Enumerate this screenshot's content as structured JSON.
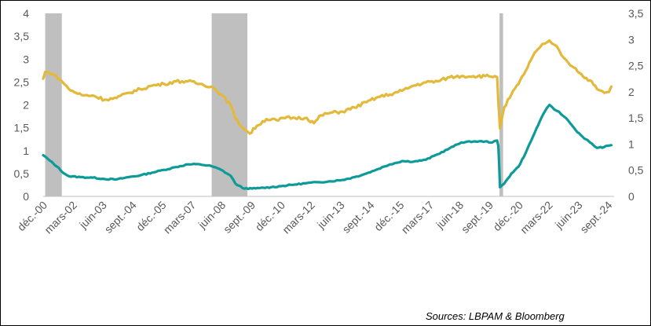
{
  "chart_data": {
    "type": "line",
    "title": "",
    "source": "Sources: LBPAM & Bloomberg",
    "ylim": [
      0,
      4
    ],
    "y2lim": [
      0,
      3.5
    ],
    "y_ticks": [
      "0",
      "0,5",
      "1",
      "1,5",
      "2",
      "2,5",
      "3",
      "3,5",
      "4"
    ],
    "y2_ticks": [
      "0",
      "0,5",
      "1",
      "1,5",
      "2",
      "2,5",
      "3",
      "3,5"
    ],
    "x_range": [
      2000.917,
      2024.917
    ],
    "x_ticks": [
      {
        "label": "déc.-00",
        "t": 2000.917
      },
      {
        "label": "mars-02",
        "t": 2002.167
      },
      {
        "label": "juin-03",
        "t": 2003.417
      },
      {
        "label": "sept.-04",
        "t": 2004.667
      },
      {
        "label": "déc.-05",
        "t": 2005.917
      },
      {
        "label": "mars-07",
        "t": 2007.167
      },
      {
        "label": "juin-08",
        "t": 2008.417
      },
      {
        "label": "sept.-09",
        "t": 2009.667
      },
      {
        "label": "déc.-10",
        "t": 2010.917
      },
      {
        "label": "mars-12",
        "t": 2012.167
      },
      {
        "label": "juin-13",
        "t": 2013.417
      },
      {
        "label": "sept.-14",
        "t": 2014.667
      },
      {
        "label": "déc.-15",
        "t": 2015.917
      },
      {
        "label": "mars-17",
        "t": 2017.167
      },
      {
        "label": "juin-18",
        "t": 2018.417
      },
      {
        "label": "sept.-19",
        "t": 2019.667
      },
      {
        "label": "déc.-20",
        "t": 2020.917
      },
      {
        "label": "mars-22",
        "t": 2022.167
      },
      {
        "label": "juin-23",
        "t": 2023.417
      },
      {
        "label": "sept.-24",
        "t": 2024.667
      }
    ],
    "recessions": [
      {
        "start": 2001.0,
        "end": 2001.7
      },
      {
        "start": 2008.0,
        "end": 2009.5
      },
      {
        "start": 2020.1,
        "end": 2020.25
      }
    ],
    "series": [
      {
        "name": "Teal series (left axis)",
        "axis": "left",
        "color": "#0f9a9a",
        "points": [
          [
            2000.917,
            0.9
          ],
          [
            2001.2,
            0.78
          ],
          [
            2001.5,
            0.65
          ],
          [
            2001.8,
            0.5
          ],
          [
            2002.0,
            0.44
          ],
          [
            2002.5,
            0.42
          ],
          [
            2003.0,
            0.41
          ],
          [
            2003.5,
            0.38
          ],
          [
            2004.0,
            0.37
          ],
          [
            2004.5,
            0.42
          ],
          [
            2005.0,
            0.46
          ],
          [
            2005.5,
            0.52
          ],
          [
            2006.0,
            0.58
          ],
          [
            2006.5,
            0.64
          ],
          [
            2007.0,
            0.7
          ],
          [
            2007.5,
            0.7
          ],
          [
            2008.0,
            0.66
          ],
          [
            2008.4,
            0.58
          ],
          [
            2008.8,
            0.45
          ],
          [
            2009.0,
            0.28
          ],
          [
            2009.3,
            0.18
          ],
          [
            2009.7,
            0.17
          ],
          [
            2010.0,
            0.18
          ],
          [
            2010.5,
            0.2
          ],
          [
            2011.0,
            0.23
          ],
          [
            2011.5,
            0.26
          ],
          [
            2012.0,
            0.29
          ],
          [
            2012.5,
            0.31
          ],
          [
            2013.0,
            0.33
          ],
          [
            2013.5,
            0.36
          ],
          [
            2014.0,
            0.42
          ],
          [
            2014.5,
            0.5
          ],
          [
            2015.0,
            0.6
          ],
          [
            2015.5,
            0.7
          ],
          [
            2016.0,
            0.77
          ],
          [
            2016.5,
            0.76
          ],
          [
            2017.0,
            0.8
          ],
          [
            2017.5,
            0.92
          ],
          [
            2018.0,
            1.05
          ],
          [
            2018.5,
            1.18
          ],
          [
            2019.0,
            1.2
          ],
          [
            2019.5,
            1.2
          ],
          [
            2019.8,
            1.18
          ],
          [
            2020.0,
            1.22
          ],
          [
            2020.05,
            1.1
          ],
          [
            2020.08,
            0.75
          ],
          [
            2020.12,
            0.2
          ],
          [
            2020.3,
            0.28
          ],
          [
            2020.6,
            0.5
          ],
          [
            2020.9,
            0.65
          ],
          [
            2021.2,
            0.95
          ],
          [
            2021.5,
            1.3
          ],
          [
            2021.8,
            1.65
          ],
          [
            2022.0,
            1.85
          ],
          [
            2022.2,
            2.0
          ],
          [
            2022.4,
            1.9
          ],
          [
            2022.6,
            1.85
          ],
          [
            2022.8,
            1.75
          ],
          [
            2023.0,
            1.65
          ],
          [
            2023.3,
            1.45
          ],
          [
            2023.6,
            1.3
          ],
          [
            2023.9,
            1.18
          ],
          [
            2024.2,
            1.06
          ],
          [
            2024.5,
            1.08
          ],
          [
            2024.8,
            1.12
          ]
        ]
      },
      {
        "name": "Gold series (right axis)",
        "axis": "right",
        "color": "#e3b93b",
        "points": [
          [
            2000.917,
            2.25
          ],
          [
            2001.0,
            2.38
          ],
          [
            2001.3,
            2.35
          ],
          [
            2001.6,
            2.25
          ],
          [
            2001.8,
            2.15
          ],
          [
            2002.0,
            2.05
          ],
          [
            2002.3,
            1.98
          ],
          [
            2002.6,
            1.93
          ],
          [
            2003.0,
            1.93
          ],
          [
            2003.5,
            1.85
          ],
          [
            2004.0,
            1.88
          ],
          [
            2004.5,
            1.98
          ],
          [
            2005.0,
            2.05
          ],
          [
            2005.5,
            2.12
          ],
          [
            2006.0,
            2.15
          ],
          [
            2006.5,
            2.2
          ],
          [
            2007.0,
            2.2
          ],
          [
            2007.5,
            2.15
          ],
          [
            2008.0,
            2.1
          ],
          [
            2008.4,
            1.95
          ],
          [
            2008.8,
            1.75
          ],
          [
            2009.0,
            1.48
          ],
          [
            2009.3,
            1.32
          ],
          [
            2009.6,
            1.2
          ],
          [
            2009.9,
            1.35
          ],
          [
            2010.3,
            1.48
          ],
          [
            2010.8,
            1.45
          ],
          [
            2011.0,
            1.5
          ],
          [
            2011.5,
            1.5
          ],
          [
            2012.0,
            1.5
          ],
          [
            2012.3,
            1.4
          ],
          [
            2012.6,
            1.55
          ],
          [
            2013.0,
            1.6
          ],
          [
            2013.5,
            1.62
          ],
          [
            2014.0,
            1.7
          ],
          [
            2014.5,
            1.8
          ],
          [
            2015.0,
            1.9
          ],
          [
            2015.5,
            1.95
          ],
          [
            2016.0,
            2.02
          ],
          [
            2016.5,
            2.12
          ],
          [
            2017.0,
            2.18
          ],
          [
            2017.5,
            2.2
          ],
          [
            2018.0,
            2.28
          ],
          [
            2018.5,
            2.3
          ],
          [
            2019.0,
            2.3
          ],
          [
            2019.5,
            2.3
          ],
          [
            2019.9,
            2.3
          ],
          [
            2020.0,
            2.28
          ],
          [
            2020.05,
            1.8
          ],
          [
            2020.12,
            1.3
          ],
          [
            2020.3,
            1.7
          ],
          [
            2020.6,
            1.95
          ],
          [
            2020.9,
            2.15
          ],
          [
            2021.2,
            2.4
          ],
          [
            2021.5,
            2.68
          ],
          [
            2021.8,
            2.85
          ],
          [
            2022.0,
            2.92
          ],
          [
            2022.2,
            2.98
          ],
          [
            2022.4,
            2.9
          ],
          [
            2022.6,
            2.8
          ],
          [
            2022.8,
            2.65
          ],
          [
            2023.0,
            2.55
          ],
          [
            2023.3,
            2.45
          ],
          [
            2023.6,
            2.3
          ],
          [
            2023.9,
            2.22
          ],
          [
            2024.2,
            2.05
          ],
          [
            2024.5,
            1.98
          ],
          [
            2024.7,
            2.0
          ],
          [
            2024.8,
            2.1
          ]
        ]
      }
    ]
  }
}
